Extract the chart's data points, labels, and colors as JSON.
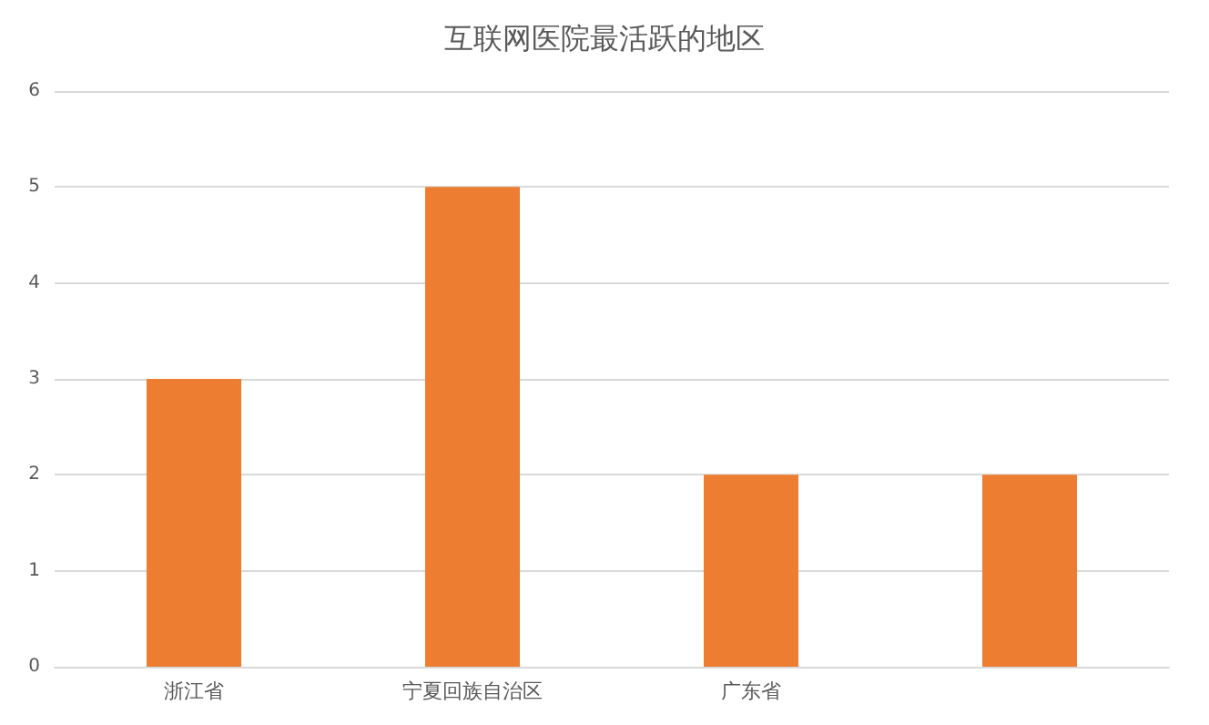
{
  "chart_data": {
    "type": "bar",
    "title": "互联网医院最活跃的地区",
    "categories": [
      "浙江省",
      "宁夏回族自治区",
      "广东省",
      null
    ],
    "values": [
      3,
      5,
      2,
      2
    ],
    "color": "#ed7d31",
    "ylim": [
      0,
      6
    ],
    "yticks": [
      0,
      1,
      2,
      3,
      4,
      5,
      6
    ],
    "grid": "y"
  }
}
